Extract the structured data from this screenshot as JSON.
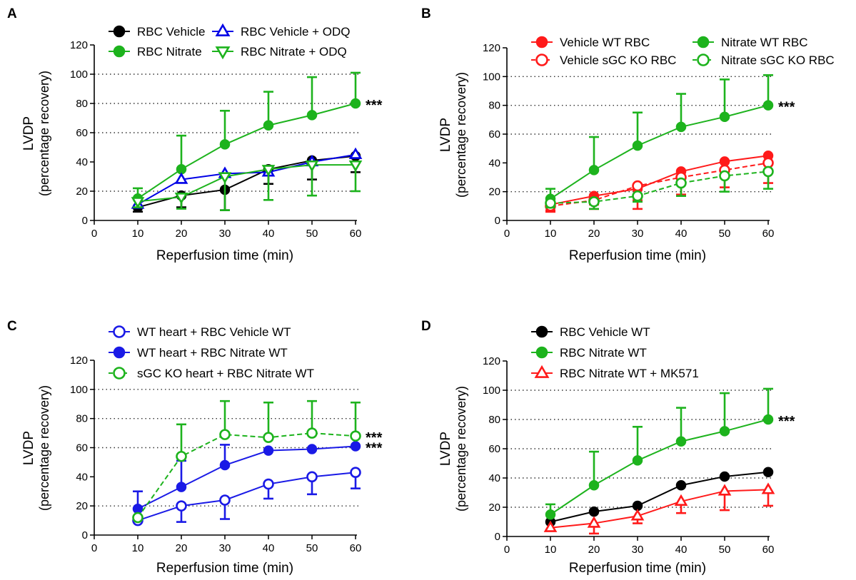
{
  "chart_data": [
    {
      "panel": "A",
      "type": "line",
      "xlabel": "Reperfusion time (min)",
      "ylabel": "LVDP",
      "ylabel2": "(percentage recovery)",
      "xlim": [
        0,
        60
      ],
      "ylim": [
        0,
        120
      ],
      "xticks": [
        0,
        10,
        20,
        30,
        40,
        50,
        60
      ],
      "yticks": [
        0,
        20,
        40,
        60,
        80,
        100,
        120
      ],
      "grid": "dotted horizontal at 20, 60, 80, 100",
      "x": [
        10,
        20,
        30,
        40,
        50,
        60
      ],
      "legend": "top, two columns",
      "series": [
        {
          "name": "RBC Vehicle",
          "color": "#000000",
          "marker": "circle",
          "fill": "filled",
          "dash": false,
          "values": [
            9,
            17,
            21,
            35,
            41,
            44
          ],
          "err_up": [
            0,
            0,
            0,
            0,
            0,
            0
          ],
          "err_down": [
            3,
            8,
            14,
            10,
            13,
            11
          ]
        },
        {
          "name": "RBC Nitrate",
          "color": "#1db31d",
          "marker": "circle",
          "fill": "filled",
          "dash": false,
          "values": [
            15,
            35,
            52,
            65,
            72,
            80
          ],
          "err_up": [
            7,
            23,
            23,
            23,
            26,
            21
          ],
          "err_down": [
            0,
            0,
            0,
            0,
            0,
            0
          ]
        },
        {
          "name": "RBC Vehicle + ODQ",
          "color": "#0000e6",
          "marker": "triangle-up",
          "fill": "open",
          "dash": false,
          "values": [
            11,
            28,
            32,
            33,
            40,
            45
          ],
          "err_up": [
            0,
            0,
            0,
            0,
            0,
            0
          ],
          "err_down": [
            0,
            0,
            0,
            0,
            0,
            0
          ]
        },
        {
          "name": "RBC Nitrate + ODQ",
          "color": "#1db31d",
          "marker": "triangle-down",
          "fill": "open",
          "dash": false,
          "values": [
            13,
            16,
            30,
            35,
            38,
            38
          ],
          "err_up": [
            0,
            0,
            0,
            0,
            0,
            0
          ],
          "err_down": [
            4,
            8,
            23,
            21,
            21,
            18
          ]
        }
      ],
      "annotations": [
        {
          "text": "***",
          "x": 60,
          "y": 80
        }
      ]
    },
    {
      "panel": "B",
      "type": "line",
      "xlabel": "Reperfusion time (min)",
      "ylabel": "LVDP",
      "ylabel2": "(percentage recovery)",
      "xlim": [
        0,
        60
      ],
      "ylim": [
        0,
        120
      ],
      "xticks": [
        0,
        10,
        20,
        30,
        40,
        50,
        60
      ],
      "yticks": [
        0,
        20,
        40,
        60,
        80,
        100,
        120
      ],
      "grid": "dotted horizontal at 20, 60, 80, 100",
      "x": [
        10,
        20,
        30,
        40,
        50,
        60
      ],
      "legend": "top, two columns",
      "series": [
        {
          "name": "Vehicle WT RBC",
          "color": "#ff1a1a",
          "marker": "circle",
          "fill": "filled",
          "dash": false,
          "values": [
            11,
            17,
            22,
            34,
            41,
            45
          ],
          "err_up": [
            0,
            0,
            0,
            0,
            0,
            0
          ],
          "err_down": [
            5,
            6,
            14,
            9,
            10,
            12
          ]
        },
        {
          "name": "Vehicle sGC KO RBC",
          "color": "#ff1a1a",
          "marker": "circle",
          "fill": "open",
          "dash": true,
          "values": [
            10,
            14,
            24,
            30,
            35,
            40
          ],
          "err_up": [
            0,
            0,
            0,
            0,
            0,
            0
          ],
          "err_down": [
            3,
            6,
            10,
            12,
            12,
            14
          ]
        },
        {
          "name": "Nitrate WT RBC",
          "color": "#1db31d",
          "marker": "circle",
          "fill": "filled",
          "dash": false,
          "values": [
            15,
            35,
            52,
            65,
            72,
            80
          ],
          "err_up": [
            7,
            23,
            23,
            23,
            26,
            21
          ],
          "err_down": [
            0,
            0,
            0,
            0,
            0,
            0
          ]
        },
        {
          "name": "Nitrate sGC KO RBC",
          "color": "#1db31d",
          "marker": "circle",
          "fill": "open",
          "dash": true,
          "values": [
            12,
            13,
            17,
            26,
            31,
            34
          ],
          "err_up": [
            0,
            0,
            0,
            0,
            0,
            0
          ],
          "err_down": [
            3,
            5,
            4,
            9,
            11,
            12
          ]
        }
      ],
      "annotations": [
        {
          "text": "***",
          "x": 60,
          "y": 80
        }
      ]
    },
    {
      "panel": "C",
      "type": "line",
      "xlabel": "Reperfusion time (min)",
      "ylabel": "LVDP",
      "ylabel2": "(percentage recovery)",
      "xlim": [
        0,
        60
      ],
      "ylim": [
        0,
        120
      ],
      "xticks": [
        0,
        10,
        20,
        30,
        40,
        50,
        60
      ],
      "yticks": [
        0,
        20,
        40,
        60,
        80,
        100,
        120
      ],
      "grid": "dotted horizontal at 20, 60, 80, 100",
      "x": [
        10,
        20,
        30,
        40,
        50,
        60
      ],
      "legend": "top, one column",
      "series": [
        {
          "name": "WT heart + RBC Vehicle WT",
          "color": "#1a1ae6",
          "marker": "circle",
          "fill": "open",
          "dash": false,
          "values": [
            10,
            20,
            24,
            35,
            40,
            43
          ],
          "err_up": [
            0,
            0,
            0,
            0,
            0,
            0
          ],
          "err_down": [
            0,
            11,
            13,
            10,
            12,
            11
          ]
        },
        {
          "name": "WT heart + RBC Nitrate WT",
          "color": "#1a1ae6",
          "marker": "circle",
          "fill": "filled",
          "dash": false,
          "values": [
            18,
            33,
            48,
            58,
            59,
            61
          ],
          "err_up": [
            12,
            18,
            14,
            0,
            0,
            0
          ],
          "err_down": [
            0,
            0,
            0,
            0,
            0,
            0
          ]
        },
        {
          "name": "sGC KO heart + RBC Nitrate WT",
          "color": "#1db31d",
          "marker": "circle",
          "fill": "open",
          "dash": true,
          "values": [
            12,
            54,
            69,
            67,
            70,
            68
          ],
          "err_up": [
            0,
            22,
            23,
            24,
            22,
            23
          ],
          "err_down": [
            0,
            0,
            0,
            0,
            0,
            0
          ]
        }
      ],
      "annotations": [
        {
          "text": "***",
          "x": 60,
          "y": 68
        },
        {
          "text": "***",
          "x": 60,
          "y": 61
        }
      ]
    },
    {
      "panel": "D",
      "type": "line",
      "xlabel": "Reperfusion time (min)",
      "ylabel": "LVDP",
      "ylabel2": "(percentage recovery)",
      "xlim": [
        0,
        60
      ],
      "ylim": [
        0,
        120
      ],
      "xticks": [
        0,
        10,
        20,
        30,
        40,
        50,
        60
      ],
      "yticks": [
        0,
        20,
        40,
        60,
        80,
        100,
        120
      ],
      "grid": "dotted horizontal at 20, 40, 60, 80, 100",
      "x": [
        10,
        20,
        30,
        40,
        50,
        60
      ],
      "legend": "top, one column",
      "series": [
        {
          "name": "RBC Vehicle WT",
          "color": "#000000",
          "marker": "circle",
          "fill": "filled",
          "dash": false,
          "values": [
            10,
            17,
            21,
            35,
            41,
            44
          ],
          "err_up": [
            0,
            0,
            0,
            0,
            0,
            0
          ],
          "err_down": [
            0,
            0,
            0,
            0,
            0,
            0
          ]
        },
        {
          "name": "RBC Nitrate WT",
          "color": "#1db31d",
          "marker": "circle",
          "fill": "filled",
          "dash": false,
          "values": [
            15,
            35,
            52,
            65,
            72,
            80
          ],
          "err_up": [
            7,
            23,
            23,
            23,
            26,
            21
          ],
          "err_down": [
            0,
            0,
            0,
            0,
            0,
            0
          ]
        },
        {
          "name": "RBC Nitrate WT + MK571",
          "color": "#ff1a1a",
          "marker": "triangle-up",
          "fill": "open",
          "dash": false,
          "values": [
            6,
            9,
            14,
            24,
            31,
            32
          ],
          "err_up": [
            0,
            0,
            0,
            0,
            0,
            0
          ],
          "err_down": [
            0,
            7,
            5,
            8,
            13,
            11
          ]
        }
      ],
      "annotations": [
        {
          "text": "***",
          "x": 60,
          "y": 80
        }
      ]
    }
  ]
}
